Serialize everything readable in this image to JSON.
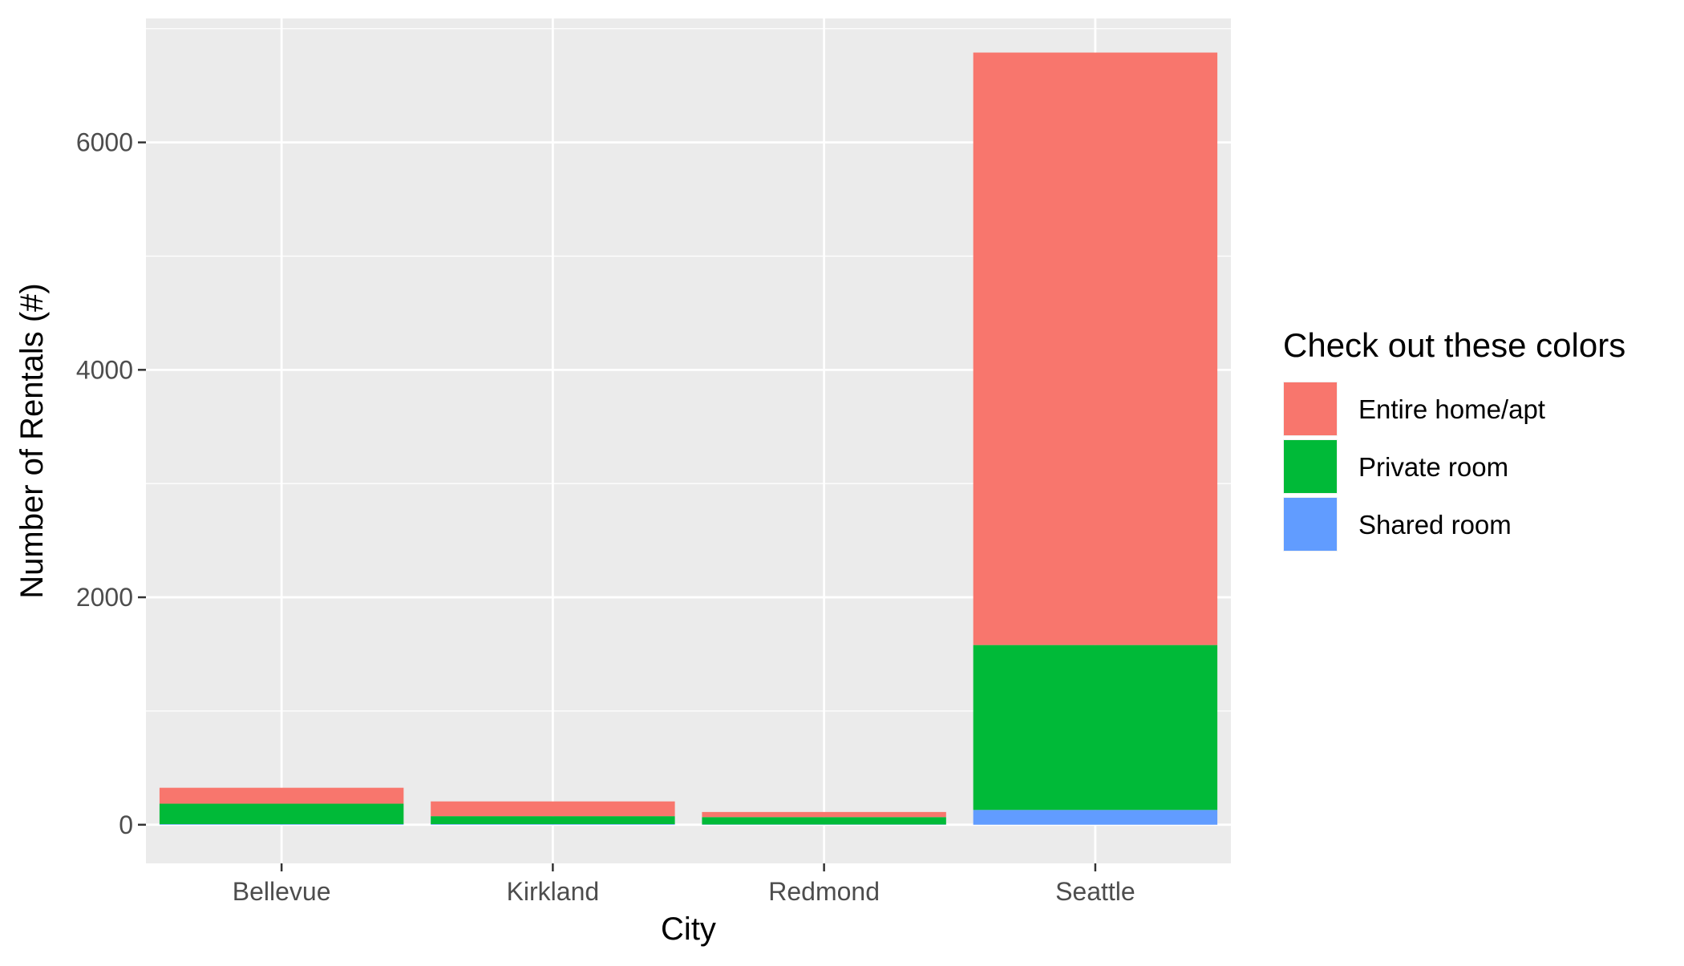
{
  "chart_data": {
    "type": "bar",
    "stacked": true,
    "categories": [
      "Bellevue",
      "Kirkland",
      "Redmond",
      "Seattle"
    ],
    "series": [
      {
        "name": "Shared room",
        "color": "#619CFF",
        "values": [
          5,
          5,
          2,
          130
        ]
      },
      {
        "name": "Private room",
        "color": "#00BA38",
        "values": [
          180,
          70,
          65,
          1450
        ]
      },
      {
        "name": "Entire home/apt",
        "color": "#F8766D",
        "values": [
          140,
          130,
          45,
          5210
        ]
      }
    ],
    "xlabel": "City",
    "ylabel": "Number of Rentals (#)",
    "ylim": [
      -340,
      7090
    ],
    "yticks": [
      0,
      2000,
      4000,
      6000
    ],
    "ytick_labels": [
      "0",
      "2000",
      "4000",
      "6000"
    ],
    "grid": true,
    "legend": {
      "title": "Check out these colors",
      "position": "right",
      "items": [
        "Entire home/apt",
        "Private room",
        "Shared room"
      ]
    },
    "panel_background": "#EBEBEB",
    "grid_color": "#FFFFFF"
  }
}
